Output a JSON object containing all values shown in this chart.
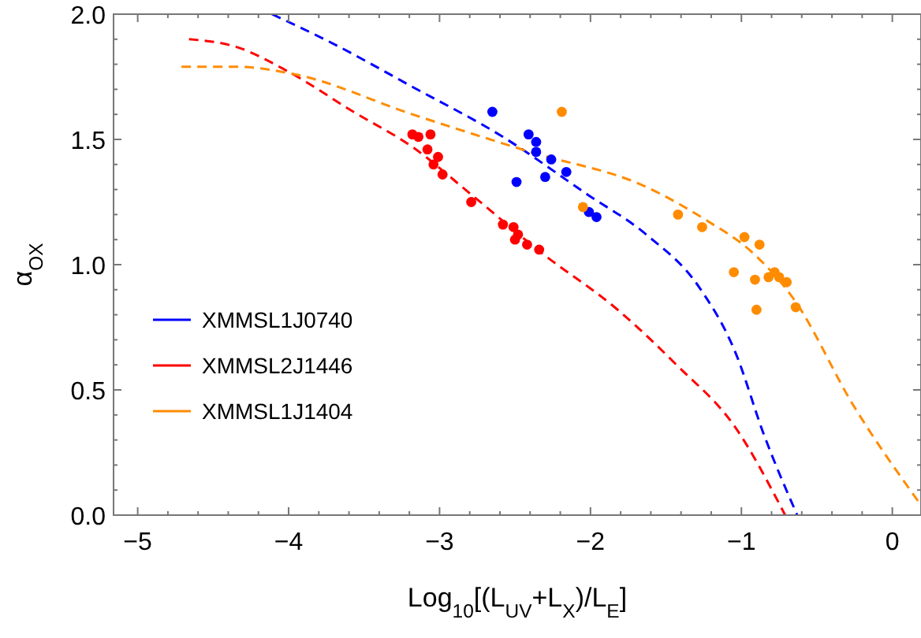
{
  "chart_data": {
    "type": "scatter",
    "xlabel": "Log$_{10}$[(L$_{UV}$+L$_{X}$)/L$_{E}$]",
    "ylabel": "α$_{OX}$",
    "xlim": [
      -5.16,
      0.19
    ],
    "ylim": [
      0,
      2
    ],
    "xticks": [
      -5,
      {
        "value": -4.8,
        "label": null
      },
      {
        "value": -4.6,
        "label": null
      },
      {
        "value": -4.4,
        "label": null
      },
      {
        "value": -4.2,
        "label": null
      },
      -4,
      {
        "value": -3.8,
        "label": null
      },
      {
        "value": -3.6,
        "label": null
      },
      {
        "value": -3.4,
        "label": null
      },
      {
        "value": -3.2,
        "label": null
      },
      -3,
      {
        "value": -2.8,
        "label": null
      },
      {
        "value": -2.6,
        "label": null
      },
      {
        "value": -2.4,
        "label": null
      },
      {
        "value": -2.2,
        "label": null
      },
      -2,
      {
        "value": -1.8,
        "label": null
      },
      {
        "value": -1.6,
        "label": null
      },
      {
        "value": -1.4,
        "label": null
      },
      {
        "value": -1.2,
        "label": null
      },
      -1,
      {
        "value": -0.8,
        "label": null
      },
      {
        "value": -0.6,
        "label": null
      },
      {
        "value": -0.4,
        "label": null
      },
      {
        "value": -0.2,
        "label": null
      },
      0
    ],
    "yticks": [
      {
        "value": 0,
        "label": "0.0"
      },
      {
        "value": 0.1,
        "label": null
      },
      {
        "value": 0.2,
        "label": null
      },
      {
        "value": 0.3,
        "label": null
      },
      {
        "value": 0.4,
        "label": null
      },
      0.5,
      {
        "value": 0.6,
        "label": null
      },
      {
        "value": 0.7,
        "label": null
      },
      {
        "value": 0.8,
        "label": null
      },
      {
        "value": 0.9,
        "label": null
      },
      {
        "value": 1,
        "label": "1.0"
      },
      {
        "value": 1.1,
        "label": null
      },
      {
        "value": 1.2,
        "label": null
      },
      {
        "value": 1.3,
        "label": null
      },
      {
        "value": 1.4,
        "label": null
      },
      1.5,
      {
        "value": 1.6,
        "label": null
      },
      {
        "value": 1.7,
        "label": null
      },
      {
        "value": 1.8,
        "label": null
      },
      {
        "value": 1.9,
        "label": null
      },
      {
        "value": 2,
        "label": "2.0"
      }
    ],
    "grid": false,
    "legend": "left",
    "series": [
      {
        "name": "XMMSL1J0740",
        "type": "line",
        "line_style": "dashed",
        "marker": "none",
        "color": "#0000ff",
        "x": [
          -4.11,
          -3.73,
          -3.18,
          -2.58,
          -2.02,
          -1.63,
          -1.28,
          -1.04,
          -0.85,
          -0.63
        ],
        "values": [
          2.0,
          1.89,
          1.71,
          1.51,
          1.28,
          1.12,
          0.91,
          0.65,
          0.32,
          0.0
        ]
      },
      {
        "name": "XMMSL2J1446",
        "type": "line",
        "line_style": "dashed",
        "marker": "none",
        "color": "#ff0000",
        "x": [
          -4.66,
          -4.35,
          -4.0,
          -3.57,
          -3.18,
          -2.79,
          -2.33,
          -1.82,
          -1.43,
          -1.04,
          -0.71
        ],
        "values": [
          1.9,
          1.87,
          1.77,
          1.61,
          1.47,
          1.28,
          1.05,
          0.82,
          0.6,
          0.35,
          0.0
        ]
      },
      {
        "name": "XMMSL1J1404",
        "type": "line",
        "line_style": "dashed",
        "marker": "none",
        "color": "#ff8c00",
        "x": [
          -4.71,
          -4.35,
          -3.96,
          -3.18,
          -2.4,
          -1.63,
          -1.24,
          -0.93,
          -0.65,
          -0.26,
          0.19
        ],
        "values": [
          1.79,
          1.79,
          1.76,
          1.6,
          1.45,
          1.31,
          1.18,
          1.05,
          0.86,
          0.44,
          0.04
        ]
      },
      {
        "marker": "circle",
        "color": "#0000ff",
        "x": [
          -2.65,
          -2.49,
          -2.41,
          -2.36,
          -2.36,
          -2.26,
          -2.3,
          -2.16,
          -2.01,
          -1.96
        ],
        "values": [
          1.61,
          1.33,
          1.52,
          1.49,
          1.45,
          1.42,
          1.35,
          1.37,
          1.21,
          1.19
        ]
      },
      {
        "marker": "circle",
        "color": "#ff0000",
        "x": [
          -3.18,
          -3.14,
          -3.06,
          -3.08,
          -3.01,
          -3.04,
          -2.98,
          -2.79,
          -2.58,
          -2.51,
          -2.48,
          -2.5,
          -2.42,
          -2.34
        ],
        "values": [
          1.52,
          1.51,
          1.52,
          1.46,
          1.43,
          1.4,
          1.36,
          1.25,
          1.16,
          1.15,
          1.12,
          1.1,
          1.08,
          1.06
        ]
      },
      {
        "marker": "circle",
        "color": "#ff8c00",
        "x": [
          -2.19,
          -2.05,
          -1.42,
          -1.26,
          -0.98,
          -0.88,
          -1.05,
          -0.91,
          -0.9,
          -0.82,
          -0.78,
          -0.75,
          -0.7,
          -0.64
        ],
        "values": [
          1.61,
          1.23,
          1.2,
          1.15,
          1.11,
          1.08,
          0.97,
          0.94,
          0.82,
          0.95,
          0.97,
          0.95,
          0.93,
          0.83
        ]
      }
    ]
  }
}
